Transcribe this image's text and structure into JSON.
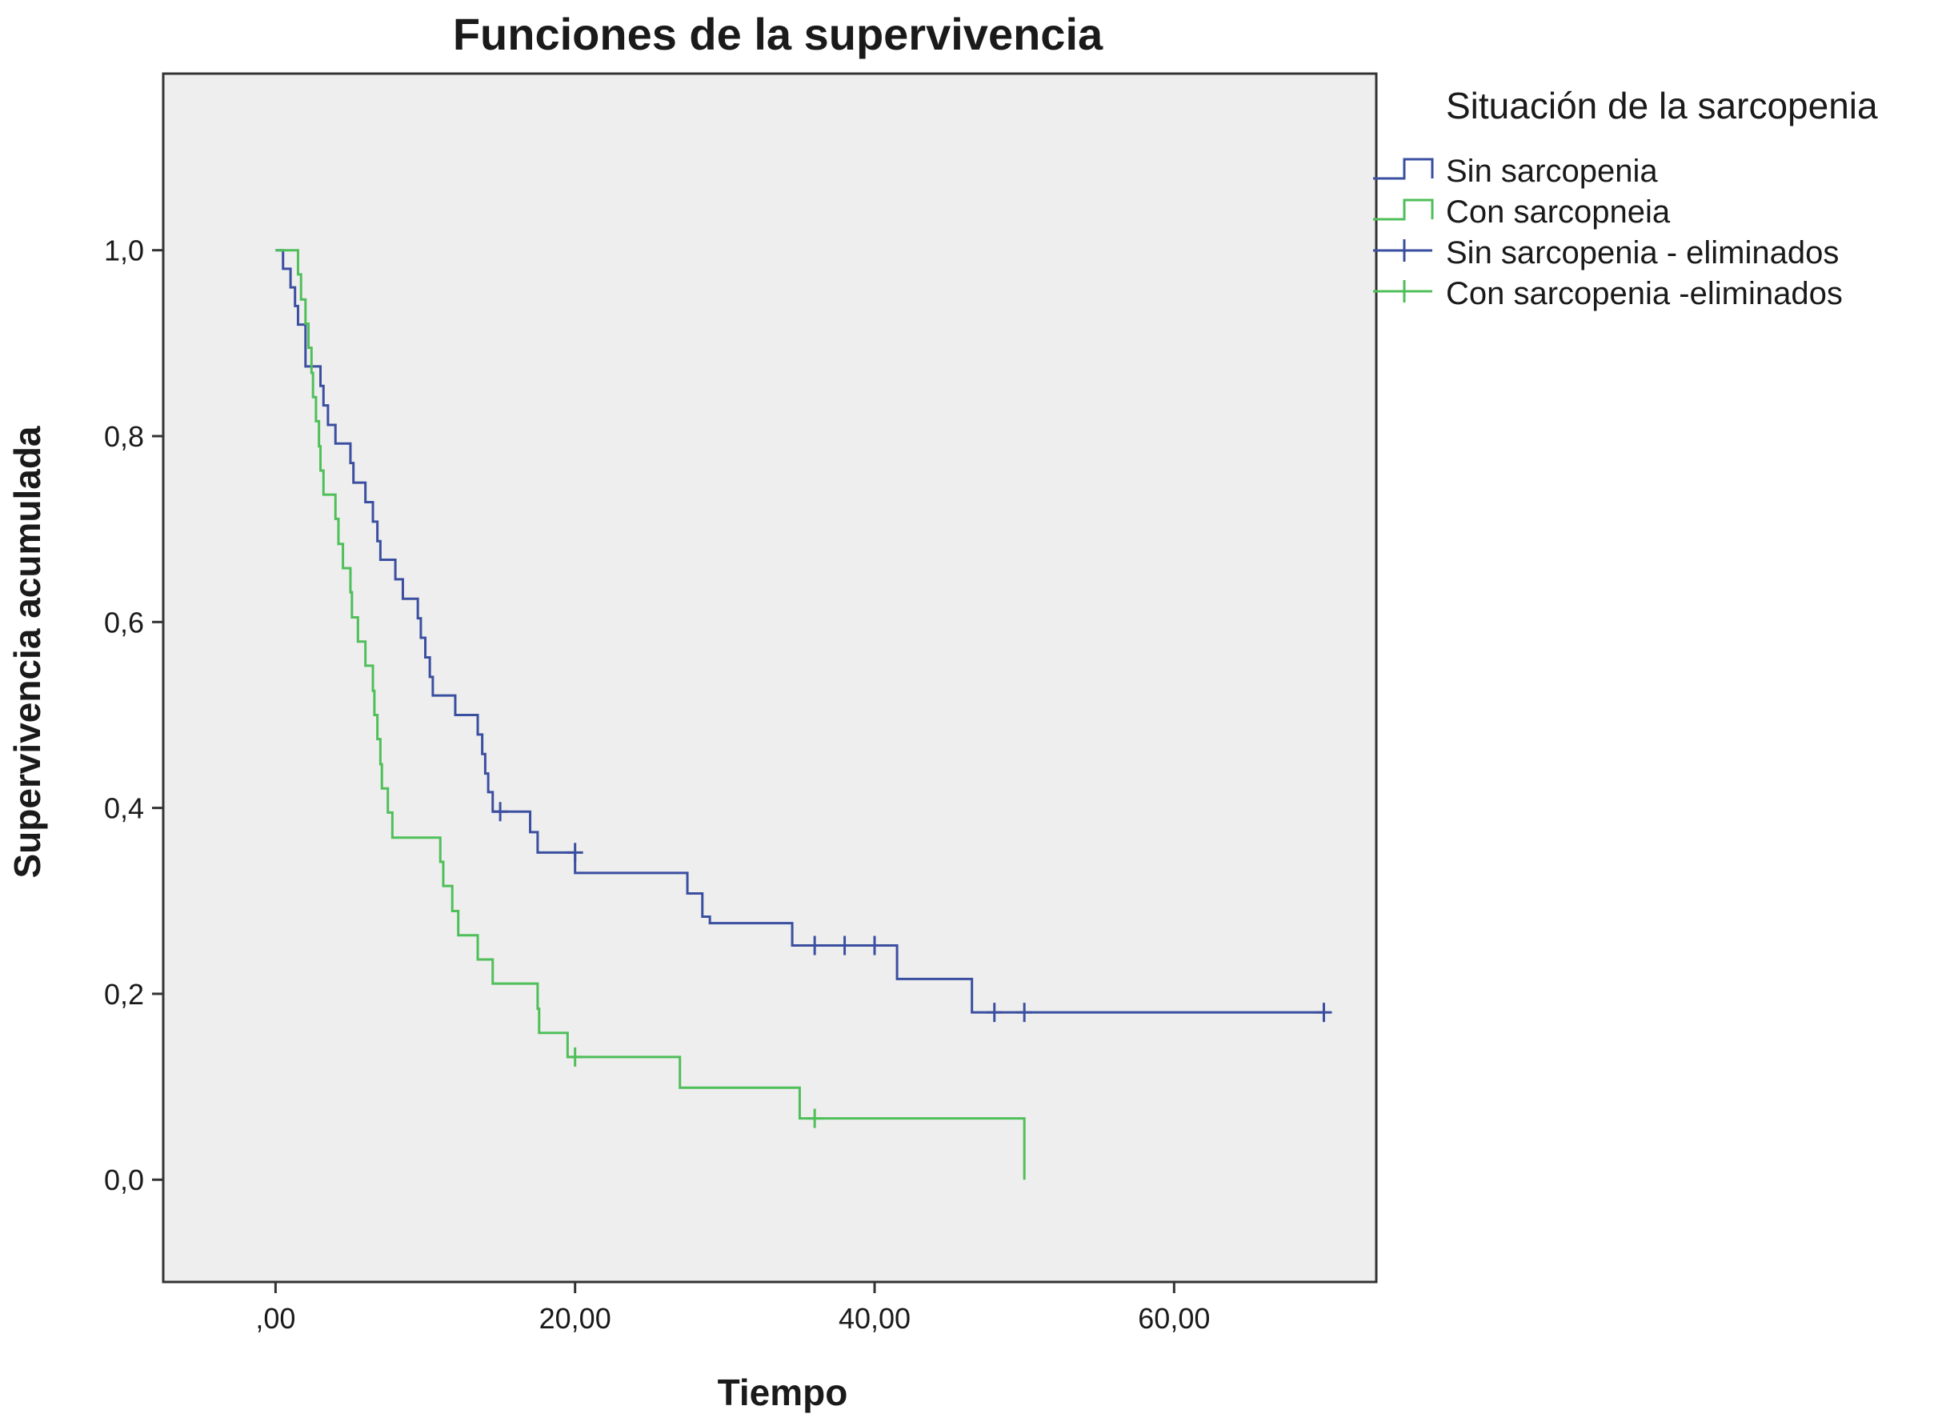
{
  "chart_data": {
    "type": "line",
    "title": "Funciones de la supervivencia",
    "xlabel": "Tiempo",
    "ylabel": "Supervivencia acumulada",
    "xlim": [
      -7.5,
      73.5
    ],
    "ylim": [
      -0.11,
      1.19
    ],
    "x_ticks": [
      0,
      20,
      40,
      60
    ],
    "x_tick_labels": [
      ",00",
      "20,00",
      "40,00",
      "60,00"
    ],
    "y_ticks": [
      0,
      0.2,
      0.4,
      0.6,
      0.8,
      1.0
    ],
    "y_tick_labels": [
      "0,0",
      "0,2",
      "0,4",
      "0,6",
      "0,8",
      "1,0"
    ],
    "grid": false,
    "legend_placement": "outside-top-right",
    "legend_title": "Situación de la sarcopenia",
    "legend": [
      {
        "label": "Sin sarcopenia",
        "symbol": "step",
        "color": "#3b4fa0"
      },
      {
        "label": "Con sarcopneia",
        "symbol": "step",
        "color": "#4fbf5a"
      },
      {
        "label": "Sin sarcopenia - eliminados",
        "symbol": "plus",
        "color": "#3b4fa0"
      },
      {
        "label": "Con sarcopenia -eliminados",
        "symbol": "plus",
        "color": "#4fbf5a"
      }
    ],
    "series": [
      {
        "name": "Sin sarcopenia",
        "color": "#3b4fa0",
        "steps": [
          [
            0,
            1.0
          ],
          [
            0.5,
            0.98
          ],
          [
            1.0,
            0.96
          ],
          [
            1.3,
            0.94
          ],
          [
            1.5,
            0.92
          ],
          [
            2.0,
            0.875
          ],
          [
            3.0,
            0.854
          ],
          [
            3.2,
            0.833
          ],
          [
            3.5,
            0.812
          ],
          [
            4.0,
            0.792
          ],
          [
            5.0,
            0.771
          ],
          [
            5.2,
            0.75
          ],
          [
            6.0,
            0.729
          ],
          [
            6.5,
            0.708
          ],
          [
            6.8,
            0.687
          ],
          [
            7.0,
            0.667
          ],
          [
            8.0,
            0.646
          ],
          [
            8.5,
            0.625
          ],
          [
            9.5,
            0.604
          ],
          [
            9.7,
            0.583
          ],
          [
            10.0,
            0.562
          ],
          [
            10.3,
            0.541
          ],
          [
            10.5,
            0.521
          ],
          [
            12.0,
            0.5
          ],
          [
            13.5,
            0.479
          ],
          [
            13.8,
            0.458
          ],
          [
            14.0,
            0.437
          ],
          [
            14.2,
            0.417
          ],
          [
            14.5,
            0.396
          ],
          [
            17.0,
            0.374
          ],
          [
            17.5,
            0.352
          ],
          [
            20.0,
            0.33
          ],
          [
            27.5,
            0.308
          ],
          [
            28.5,
            0.283
          ],
          [
            29.0,
            0.276
          ],
          [
            34.5,
            0.252
          ],
          [
            41.5,
            0.216
          ],
          [
            46.5,
            0.18
          ],
          [
            70.0,
            0.18
          ]
        ],
        "censored": [
          [
            15.0,
            0.396
          ],
          [
            20.0,
            0.352
          ],
          [
            36.0,
            0.252
          ],
          [
            38.0,
            0.252
          ],
          [
            40.0,
            0.252
          ],
          [
            48.0,
            0.18
          ],
          [
            50.0,
            0.18
          ],
          [
            70.0,
            0.18
          ]
        ]
      },
      {
        "name": "Con sarcopneia",
        "color": "#4fbf5a",
        "steps": [
          [
            0,
            1.0
          ],
          [
            1.5,
            0.974
          ],
          [
            1.7,
            0.947
          ],
          [
            2.0,
            0.921
          ],
          [
            2.2,
            0.895
          ],
          [
            2.4,
            0.868
          ],
          [
            2.5,
            0.842
          ],
          [
            2.7,
            0.816
          ],
          [
            2.9,
            0.789
          ],
          [
            3.0,
            0.763
          ],
          [
            3.2,
            0.737
          ],
          [
            4.0,
            0.711
          ],
          [
            4.2,
            0.684
          ],
          [
            4.5,
            0.658
          ],
          [
            5.0,
            0.632
          ],
          [
            5.1,
            0.605
          ],
          [
            5.5,
            0.579
          ],
          [
            6.0,
            0.553
          ],
          [
            6.5,
            0.526
          ],
          [
            6.6,
            0.5
          ],
          [
            6.8,
            0.474
          ],
          [
            7.0,
            0.447
          ],
          [
            7.1,
            0.421
          ],
          [
            7.5,
            0.395
          ],
          [
            7.8,
            0.368
          ],
          [
            11.0,
            0.342
          ],
          [
            11.2,
            0.316
          ],
          [
            11.8,
            0.289
          ],
          [
            12.2,
            0.263
          ],
          [
            13.5,
            0.237
          ],
          [
            14.5,
            0.211
          ],
          [
            17.5,
            0.184
          ],
          [
            17.6,
            0.158
          ],
          [
            19.5,
            0.132
          ],
          [
            27.0,
            0.099
          ],
          [
            35.0,
            0.066
          ],
          [
            50.0,
            0.0
          ]
        ],
        "censored": [
          [
            20.0,
            0.132
          ],
          [
            36.0,
            0.066
          ]
        ]
      }
    ]
  }
}
